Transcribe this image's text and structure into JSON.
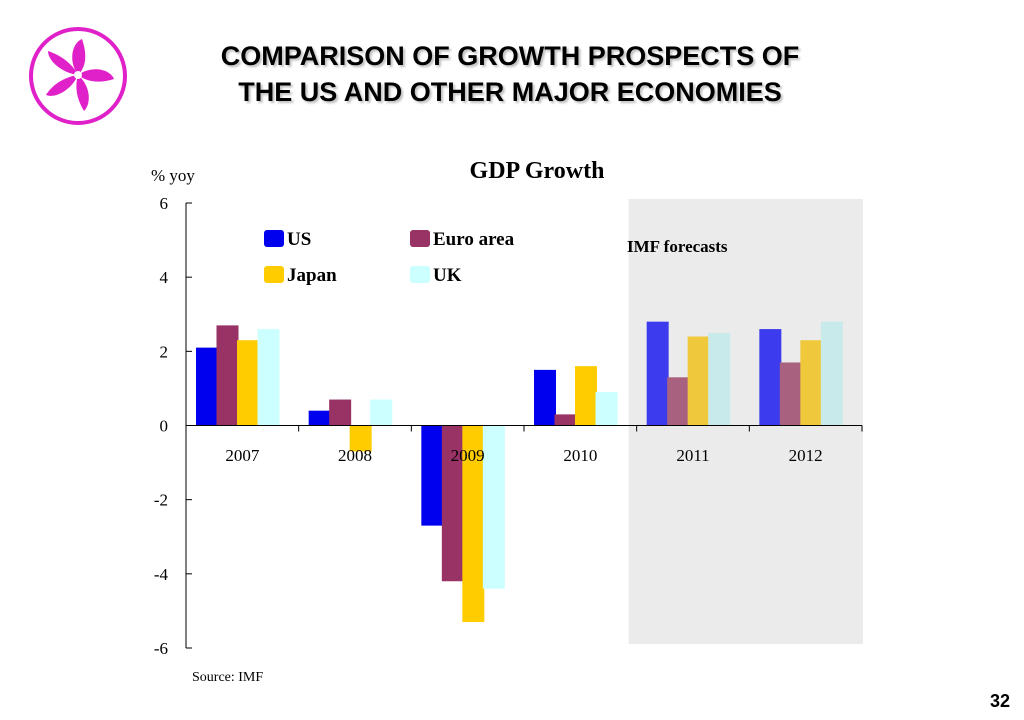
{
  "slide": {
    "title_line1": "COMPARISON OF GROWTH PROSPECTS OF",
    "title_line2": "THE US AND OTHER MAJOR ECONOMIES",
    "page_number": "32",
    "logo": "bauhinia-flower-logo",
    "logo_color": "#e020c8"
  },
  "chart_data": {
    "type": "bar",
    "title": "GDP Growth",
    "ylabel": "% yoy",
    "source": "Source: IMF",
    "forecast_label": "IMF forecasts",
    "forecast_shading_color": "#ebebeb",
    "forecast_categories": [
      "2011",
      "2012"
    ],
    "categories": [
      "2007",
      "2008",
      "2009",
      "2010",
      "2011",
      "2012"
    ],
    "ylim": [
      -6,
      6
    ],
    "yticks": [
      "6",
      "4",
      "2",
      "0",
      "-2",
      "-4",
      "-6"
    ],
    "ytick_values": [
      6,
      4,
      2,
      0,
      -2,
      -4,
      -6
    ],
    "legend_placement": "top-left",
    "grid": false,
    "series": [
      {
        "name": "US",
        "color": "#0000ee",
        "forecast_color": "#3c3cee",
        "values": [
          2.1,
          0.4,
          -2.7,
          1.5,
          2.8,
          2.6
        ]
      },
      {
        "name": "Euro area",
        "color": "#993366",
        "forecast_color": "#a8627f",
        "values": [
          2.7,
          0.7,
          -4.2,
          0.3,
          1.3,
          1.7
        ]
      },
      {
        "name": "Japan",
        "color": "#ffcc00",
        "forecast_color": "#f0c83c",
        "values": [
          2.3,
          -0.7,
          -5.3,
          1.6,
          2.4,
          2.3
        ]
      },
      {
        "name": "UK",
        "color": "#ccffff",
        "forecast_color": "#c9eaea",
        "values": [
          2.6,
          0.7,
          -4.4,
          0.9,
          2.5,
          2.8
        ]
      }
    ]
  }
}
